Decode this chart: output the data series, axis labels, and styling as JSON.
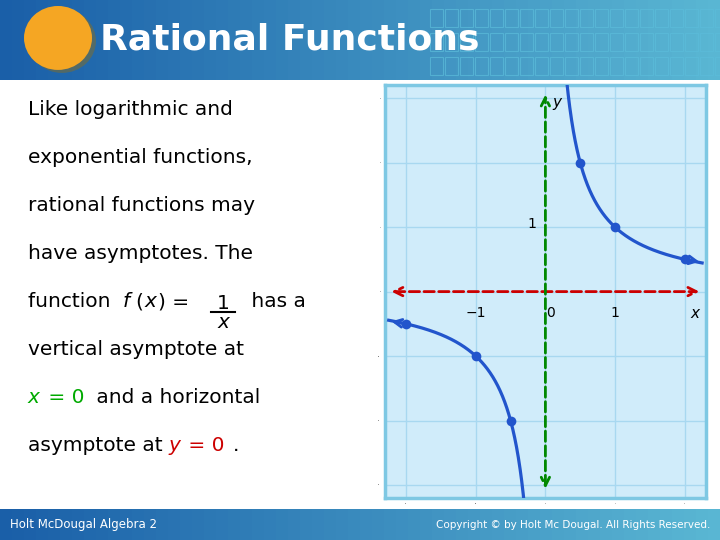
{
  "title": "Rational Functions",
  "title_color": "#FFFFFF",
  "title_bg_left": "#1A5FA8",
  "title_bg_right": "#5BB8D4",
  "header_rect_color": "#4AAAC8",
  "oval_color": "#F5A623",
  "oval_shadow": "#C47800",
  "bg_color": "#FFFFFF",
  "footer_text_left": "Holt McDougal Algebra 2",
  "footer_text_right": "Copyright © by Holt Mc Dougal. All Rights Reserved.",
  "footer_bg": "#2277AA",
  "text_color": "#000000",
  "highlight_green": "#00AA00",
  "highlight_red": "#CC0000",
  "graph_bg": "#D0ECFA",
  "graph_border": "#7EC8E3",
  "grid_color": "#A8D8F0",
  "curve_color": "#2255CC",
  "asym_v_color": "#008800",
  "asym_h_color": "#CC0000",
  "dot_color": "#2255CC",
  "graph_xlim": [
    -2.3,
    2.3
  ],
  "graph_ylim": [
    -3.2,
    3.2
  ]
}
